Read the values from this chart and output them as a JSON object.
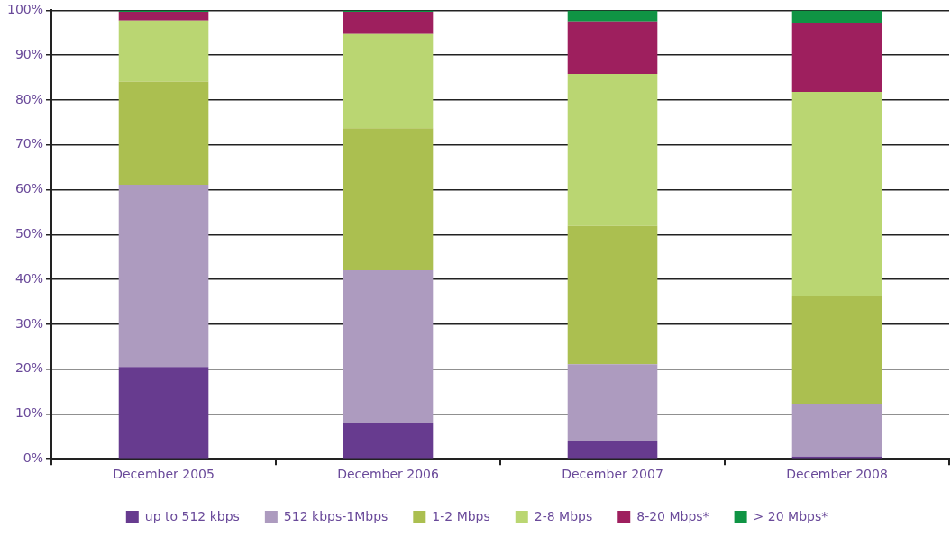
{
  "chart_data": {
    "type": "bar",
    "stacked": true,
    "categories": [
      "December 2005",
      "December 2006",
      "December 2007",
      "December 2008"
    ],
    "series": [
      {
        "name": "up to 512 kbps",
        "color": "#673b8f",
        "values": [
          20.5,
          8.1,
          3.9,
          0.5
        ]
      },
      {
        "name": "512 kbps-1Mbps",
        "color": "#ad9bbf",
        "values": [
          40.6,
          33.9,
          17.2,
          11.8
        ]
      },
      {
        "name": "1-2 Mbps",
        "color": "#abbf50",
        "values": [
          23.0,
          31.7,
          30.8,
          24.1
        ]
      },
      {
        "name": "2-8 Mbps",
        "color": "#bad672",
        "values": [
          13.6,
          21.0,
          33.9,
          45.4
        ]
      },
      {
        "name": "8-20 Mbps*",
        "color": "#9e1f5e",
        "values": [
          2.0,
          5.0,
          11.7,
          15.3
        ]
      },
      {
        "name": "> 20 Mbps*",
        "color": "#0f9444",
        "values": [
          0.3,
          0.3,
          2.5,
          2.9
        ]
      }
    ],
    "ylim": [
      0,
      100
    ],
    "yticks": [
      {
        "value": 0,
        "label": "0%"
      },
      {
        "value": 10,
        "label": "10%"
      },
      {
        "value": 20,
        "label": "20%"
      },
      {
        "value": 30,
        "label": "30%"
      },
      {
        "value": 40,
        "label": "40%"
      },
      {
        "value": 50,
        "label": "50%"
      },
      {
        "value": 60,
        "label": "60%"
      },
      {
        "value": 70,
        "label": "70%"
      },
      {
        "value": 80,
        "label": "80%"
      },
      {
        "value": 90,
        "label": "90%"
      },
      {
        "value": 100,
        "label": "100%"
      }
    ],
    "grid": "y",
    "legend": "bottom"
  }
}
